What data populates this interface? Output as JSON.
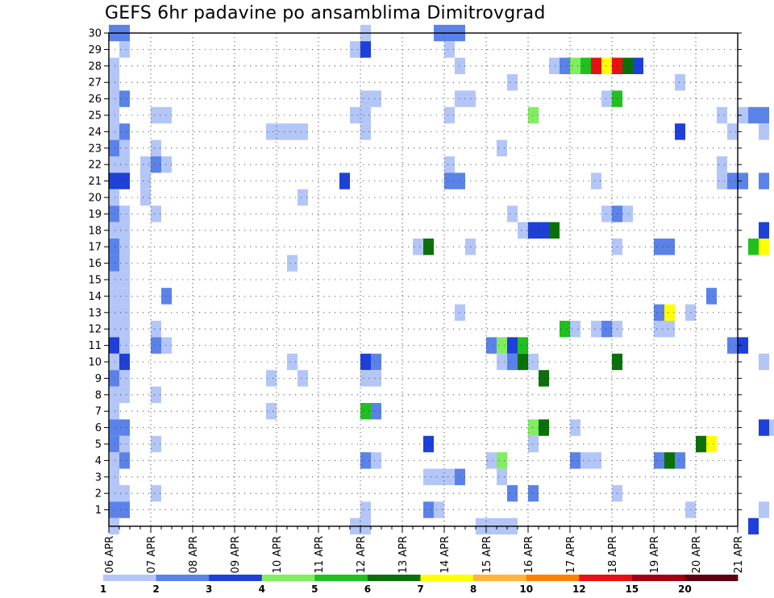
{
  "chart_data": {
    "type": "heatmap",
    "title": "GEFS 6hr padavine po ansamblima Dimitrovgrad",
    "xlabel": "",
    "ylabel": "",
    "x_tick_labels": [
      "06 APR",
      "07 APR",
      "08 APR",
      "09 APR",
      "10 APR",
      "11 APR",
      "12 APR",
      "13 APR",
      "14 APR",
      "15 APR",
      "16 APR",
      "17 APR",
      "18 APR",
      "19 APR",
      "20 APR",
      "21 APR"
    ],
    "y_tick_labels": [
      "1",
      "2",
      "3",
      "4",
      "5",
      "6",
      "7",
      "8",
      "9",
      "10",
      "11",
      "12",
      "13",
      "14",
      "15",
      "16",
      "17",
      "18",
      "19",
      "20",
      "21",
      "22",
      "23",
      "24",
      "25",
      "26",
      "27",
      "28",
      "29",
      "30"
    ],
    "xlim": [
      0,
      15
    ],
    "ylim": [
      0,
      30
    ],
    "x_units": "days since 06 APR (6-hourly steps)",
    "grid": true,
    "colorbar": {
      "position": "bottom",
      "labels": [
        "1",
        "2",
        "3",
        "4",
        "5",
        "6",
        "7",
        "8",
        "10",
        "12",
        "15",
        "20"
      ],
      "colors": [
        "#b3c6f7",
        "#5b82e8",
        "#1e40d8",
        "#80ee60",
        "#20c020",
        "#0a700a",
        "#ffff00",
        "#ffb43c",
        "#ff8000",
        "#e81010",
        "#a00010",
        "#600010"
      ]
    },
    "cells": [
      [
        0,
        30,
        2
      ],
      [
        1,
        30,
        2
      ],
      [
        24,
        30,
        1
      ],
      [
        31,
        30,
        2
      ],
      [
        32,
        30,
        2
      ],
      [
        33,
        30,
        2
      ],
      [
        1,
        29,
        1
      ],
      [
        23,
        29,
        1
      ],
      [
        24,
        29,
        3
      ],
      [
        32,
        29,
        1
      ],
      [
        0,
        28,
        1
      ],
      [
        33,
        28,
        1
      ],
      [
        42,
        28,
        1
      ],
      [
        43,
        28,
        2
      ],
      [
        44,
        28,
        4
      ],
      [
        45,
        28,
        5
      ],
      [
        46,
        28,
        10
      ],
      [
        47,
        28,
        7
      ],
      [
        48,
        28,
        10
      ],
      [
        49,
        28,
        6
      ],
      [
        50,
        28,
        3
      ],
      [
        68,
        28,
        6
      ],
      [
        69,
        28,
        9
      ],
      [
        70,
        28,
        1
      ],
      [
        71,
        28,
        2
      ],
      [
        72,
        28,
        8
      ],
      [
        73,
        28,
        7
      ],
      [
        0,
        27,
        1
      ],
      [
        38,
        27,
        1
      ],
      [
        54,
        27,
        1
      ],
      [
        0,
        26,
        1
      ],
      [
        1,
        26,
        2
      ],
      [
        24,
        26,
        1
      ],
      [
        25,
        26,
        1
      ],
      [
        33,
        26,
        1
      ],
      [
        34,
        26,
        1
      ],
      [
        47,
        26,
        1
      ],
      [
        48,
        26,
        5
      ],
      [
        66,
        26,
        1
      ],
      [
        68,
        26,
        6
      ],
      [
        69,
        26,
        1
      ],
      [
        0,
        25,
        1
      ],
      [
        4,
        25,
        1
      ],
      [
        5,
        25,
        1
      ],
      [
        23,
        25,
        1
      ],
      [
        24,
        25,
        1
      ],
      [
        32,
        25,
        1
      ],
      [
        40,
        25,
        4
      ],
      [
        58,
        25,
        1
      ],
      [
        60,
        25,
        1
      ],
      [
        61,
        25,
        2
      ],
      [
        62,
        25,
        2
      ],
      [
        0,
        24,
        1
      ],
      [
        1,
        24,
        2
      ],
      [
        15,
        24,
        1
      ],
      [
        16,
        24,
        1
      ],
      [
        17,
        24,
        1
      ],
      [
        18,
        24,
        1
      ],
      [
        24,
        24,
        1
      ],
      [
        54,
        24,
        3
      ],
      [
        59,
        24,
        1
      ],
      [
        62,
        24,
        1
      ],
      [
        68,
        24,
        7
      ],
      [
        71,
        24,
        3
      ],
      [
        72,
        24,
        4
      ],
      [
        0,
        23,
        2
      ],
      [
        1,
        23,
        1
      ],
      [
        4,
        23,
        1
      ],
      [
        37,
        23,
        1
      ],
      [
        69,
        23,
        1
      ],
      [
        0,
        22,
        1
      ],
      [
        1,
        22,
        1
      ],
      [
        3,
        22,
        1
      ],
      [
        4,
        22,
        2
      ],
      [
        5,
        22,
        1
      ],
      [
        32,
        22,
        1
      ],
      [
        58,
        22,
        1
      ],
      [
        72,
        22,
        2
      ],
      [
        73,
        22,
        5
      ],
      [
        0,
        21,
        3
      ],
      [
        1,
        21,
        3
      ],
      [
        3,
        21,
        1
      ],
      [
        22,
        21,
        3
      ],
      [
        32,
        21,
        2
      ],
      [
        33,
        21,
        2
      ],
      [
        46,
        21,
        1
      ],
      [
        58,
        21,
        1
      ],
      [
        59,
        21,
        2
      ],
      [
        60,
        21,
        2
      ],
      [
        62,
        21,
        2
      ],
      [
        67,
        21,
        1
      ],
      [
        68,
        21,
        5
      ],
      [
        71,
        21,
        1
      ],
      [
        72,
        21,
        3
      ],
      [
        0,
        20,
        1
      ],
      [
        3,
        20,
        1
      ],
      [
        18,
        20,
        1
      ],
      [
        0,
        19,
        2
      ],
      [
        1,
        19,
        1
      ],
      [
        4,
        19,
        1
      ],
      [
        38,
        19,
        1
      ],
      [
        47,
        19,
        1
      ],
      [
        48,
        19,
        2
      ],
      [
        49,
        19,
        1
      ],
      [
        0,
        18,
        1
      ],
      [
        1,
        18,
        1
      ],
      [
        39,
        18,
        1
      ],
      [
        40,
        18,
        3
      ],
      [
        41,
        18,
        3
      ],
      [
        42,
        18,
        6
      ],
      [
        62,
        18,
        3
      ],
      [
        64,
        18,
        3
      ],
      [
        65,
        18,
        5
      ],
      [
        66,
        18,
        5
      ],
      [
        67,
        18,
        11
      ],
      [
        68,
        18,
        5
      ],
      [
        69,
        18,
        6
      ],
      [
        73,
        18,
        6
      ],
      [
        0,
        17,
        2
      ],
      [
        1,
        17,
        1
      ],
      [
        29,
        17,
        1
      ],
      [
        30,
        17,
        6
      ],
      [
        34,
        17,
        1
      ],
      [
        48,
        17,
        1
      ],
      [
        52,
        17,
        2
      ],
      [
        53,
        17,
        2
      ],
      [
        61,
        17,
        5
      ],
      [
        62,
        17,
        7
      ],
      [
        68,
        17,
        4
      ],
      [
        72,
        17,
        3
      ],
      [
        73,
        17,
        1
      ],
      [
        0,
        16,
        2
      ],
      [
        1,
        16,
        1
      ],
      [
        17,
        16,
        1
      ],
      [
        0,
        15,
        1
      ],
      [
        1,
        15,
        1
      ],
      [
        0,
        14,
        1
      ],
      [
        1,
        14,
        1
      ],
      [
        5,
        14,
        2
      ],
      [
        57,
        14,
        2
      ],
      [
        0,
        13,
        1
      ],
      [
        1,
        13,
        1
      ],
      [
        33,
        13,
        1
      ],
      [
        52,
        13,
        2
      ],
      [
        53,
        13,
        7
      ],
      [
        55,
        13,
        1
      ],
      [
        0,
        12,
        1
      ],
      [
        1,
        12,
        1
      ],
      [
        4,
        12,
        1
      ],
      [
        43,
        12,
        5
      ],
      [
        44,
        12,
        1
      ],
      [
        46,
        12,
        1
      ],
      [
        47,
        12,
        2
      ],
      [
        48,
        12,
        1
      ],
      [
        52,
        12,
        1
      ],
      [
        53,
        12,
        1
      ],
      [
        73,
        12,
        1
      ],
      [
        0,
        11,
        3
      ],
      [
        1,
        11,
        1
      ],
      [
        4,
        11,
        2
      ],
      [
        5,
        11,
        1
      ],
      [
        36,
        11,
        2
      ],
      [
        37,
        11,
        4
      ],
      [
        38,
        11,
        3
      ],
      [
        39,
        11,
        5
      ],
      [
        59,
        11,
        2
      ],
      [
        60,
        11,
        3
      ],
      [
        68,
        11,
        2
      ],
      [
        70,
        11,
        1
      ],
      [
        71,
        11,
        1
      ],
      [
        0,
        10,
        1
      ],
      [
        1,
        10,
        3
      ],
      [
        17,
        10,
        1
      ],
      [
        24,
        10,
        3
      ],
      [
        25,
        10,
        2
      ],
      [
        37,
        10,
        1
      ],
      [
        38,
        10,
        2
      ],
      [
        39,
        10,
        6
      ],
      [
        40,
        10,
        1
      ],
      [
        48,
        10,
        6
      ],
      [
        62,
        10,
        1
      ],
      [
        68,
        10,
        5
      ],
      [
        69,
        10,
        5
      ],
      [
        70,
        10,
        3
      ],
      [
        72,
        10,
        2
      ],
      [
        73,
        10,
        3
      ],
      [
        0,
        9,
        2
      ],
      [
        1,
        9,
        1
      ],
      [
        15,
        9,
        1
      ],
      [
        18,
        9,
        1
      ],
      [
        24,
        9,
        1
      ],
      [
        25,
        9,
        1
      ],
      [
        41,
        9,
        6
      ],
      [
        71,
        9,
        1
      ],
      [
        72,
        9,
        1
      ],
      [
        0,
        8,
        1
      ],
      [
        1,
        8,
        1
      ],
      [
        4,
        8,
        1
      ],
      [
        0,
        7,
        1
      ],
      [
        15,
        7,
        1
      ],
      [
        24,
        7,
        5
      ],
      [
        25,
        7,
        2
      ],
      [
        72,
        7,
        1
      ],
      [
        73,
        7,
        2
      ],
      [
        0,
        6,
        2
      ],
      [
        1,
        6,
        2
      ],
      [
        40,
        6,
        4
      ],
      [
        41,
        6,
        6
      ],
      [
        44,
        6,
        1
      ],
      [
        62,
        6,
        3
      ],
      [
        63,
        6,
        1
      ],
      [
        72,
        6,
        1
      ],
      [
        73,
        6,
        4
      ],
      [
        0,
        5,
        2
      ],
      [
        1,
        5,
        1
      ],
      [
        4,
        5,
        1
      ],
      [
        30,
        5,
        3
      ],
      [
        40,
        5,
        1
      ],
      [
        56,
        5,
        6
      ],
      [
        57,
        5,
        7
      ],
      [
        0,
        4,
        1
      ],
      [
        1,
        4,
        2
      ],
      [
        24,
        4,
        2
      ],
      [
        25,
        4,
        1
      ],
      [
        36,
        4,
        1
      ],
      [
        37,
        4,
        4
      ],
      [
        44,
        4,
        2
      ],
      [
        45,
        4,
        1
      ],
      [
        46,
        4,
        1
      ],
      [
        52,
        4,
        2
      ],
      [
        53,
        4,
        6
      ],
      [
        54,
        4,
        2
      ],
      [
        72,
        4,
        4
      ],
      [
        0,
        3,
        1
      ],
      [
        30,
        3,
        1
      ],
      [
        31,
        3,
        1
      ],
      [
        32,
        3,
        1
      ],
      [
        33,
        3,
        2
      ],
      [
        37,
        3,
        1
      ],
      [
        0,
        2,
        1
      ],
      [
        1,
        2,
        1
      ],
      [
        4,
        2,
        1
      ],
      [
        38,
        2,
        2
      ],
      [
        40,
        2,
        2
      ],
      [
        48,
        2,
        1
      ],
      [
        72,
        2,
        5
      ],
      [
        73,
        2,
        1
      ],
      [
        0,
        1,
        2
      ],
      [
        1,
        1,
        2
      ],
      [
        24,
        1,
        1
      ],
      [
        30,
        1,
        2
      ],
      [
        31,
        1,
        1
      ],
      [
        55,
        1,
        1
      ],
      [
        62,
        1,
        1
      ],
      [
        0,
        0,
        1
      ],
      [
        23,
        0,
        1
      ],
      [
        24,
        0,
        1
      ],
      [
        35,
        0,
        1
      ],
      [
        36,
        0,
        1
      ],
      [
        37,
        0,
        1
      ],
      [
        38,
        0,
        1
      ],
      [
        61,
        0,
        3
      ]
    ]
  }
}
